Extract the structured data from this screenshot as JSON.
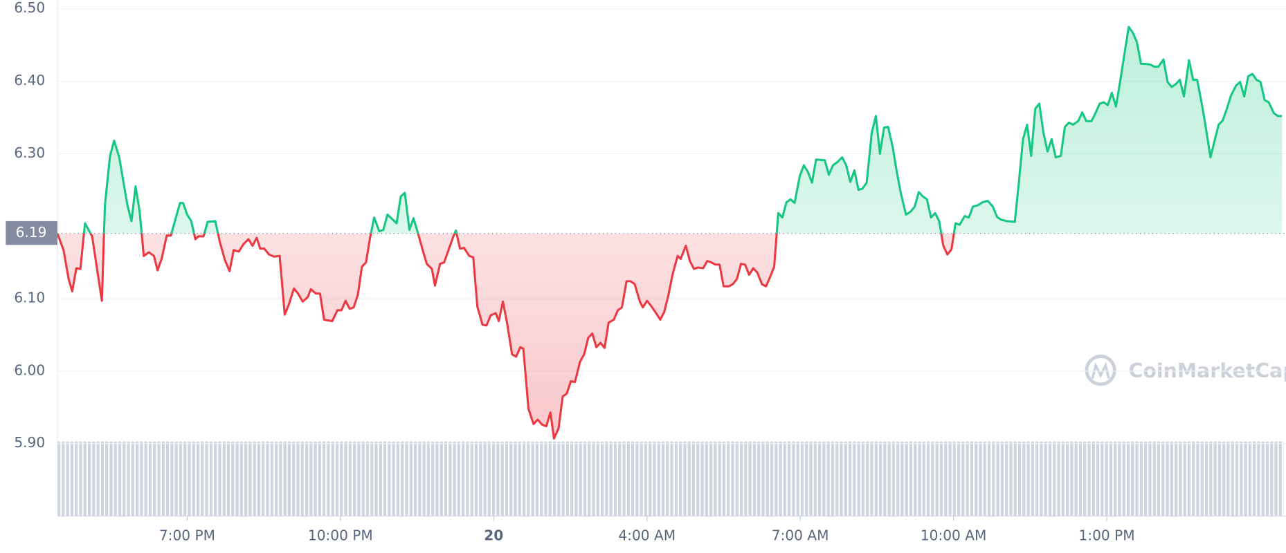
{
  "chart_data": {
    "type": "line",
    "watermark": "CoinMarketCap",
    "baseline": 6.19,
    "up_color": "#16c784",
    "down_color": "#ea3943",
    "xlim": [
      16.46,
      40.46
    ],
    "xticks": [
      {
        "value": 19,
        "label": "7:00 PM"
      },
      {
        "value": 22,
        "label": "10:00 PM"
      },
      {
        "value": 25,
        "label": "20"
      },
      {
        "value": 28,
        "label": "4:00 AM"
      },
      {
        "value": 31,
        "label": "7:00 AM"
      },
      {
        "value": 34,
        "label": "10:00 AM"
      },
      {
        "value": 37,
        "label": "1:00 PM"
      }
    ],
    "ylim": [
      5.8,
      6.512
    ],
    "yticks": [
      {
        "value": 5.9,
        "label": "5.90"
      },
      {
        "value": 6.0,
        "label": "6.00"
      },
      {
        "value": 6.1,
        "label": "6.10"
      },
      {
        "value": 6.3,
        "label": "6.30"
      },
      {
        "value": 6.4,
        "label": "6.40"
      },
      {
        "value": 6.5,
        "label": "6.50"
      }
    ],
    "grid": true,
    "x": [
      16.46,
      16.58,
      16.68,
      16.75,
      16.83,
      16.91,
      17.0,
      17.14,
      17.33,
      17.39,
      17.49,
      17.57,
      17.67,
      17.83,
      17.91,
      17.99,
      18.07,
      18.15,
      18.25,
      18.35,
      18.42,
      18.5,
      18.6,
      18.68,
      18.78,
      18.86,
      18.92,
      19.0,
      19.08,
      19.16,
      19.22,
      19.32,
      19.4,
      19.55,
      19.64,
      19.74,
      19.83,
      19.91,
      20.01,
      20.1,
      20.2,
      20.28,
      20.36,
      20.43,
      20.51,
      20.6,
      20.7,
      20.81,
      20.91,
      20.99,
      21.09,
      21.17,
      21.26,
      21.36,
      21.42,
      21.52,
      21.6,
      21.68,
      21.84,
      21.94,
      22.02,
      22.1,
      22.18,
      22.26,
      22.34,
      22.42,
      22.5,
      22.58,
      22.66,
      22.76,
      22.84,
      22.92,
      23.1,
      23.18,
      23.26,
      23.35,
      23.43,
      23.51,
      23.61,
      23.69,
      23.79,
      23.85,
      23.95,
      24.03,
      24.11,
      24.2,
      24.26,
      24.34,
      24.42,
      24.52,
      24.6,
      24.68,
      24.78,
      24.86,
      24.94,
      25.04,
      25.1,
      25.18,
      25.26,
      25.36,
      25.44,
      25.52,
      25.58,
      25.68,
      25.78,
      25.86,
      25.95,
      26.03,
      26.11,
      26.18,
      26.27,
      26.35,
      26.43,
      26.51,
      26.59,
      26.69,
      26.77,
      26.85,
      26.93,
      27.01,
      27.09,
      27.17,
      27.25,
      27.35,
      27.43,
      27.51,
      27.6,
      27.68,
      27.76,
      27.86,
      27.92,
      28.0,
      28.08,
      28.16,
      28.26,
      28.34,
      28.42,
      28.5,
      28.6,
      28.66,
      28.76,
      28.84,
      28.92,
      29.0,
      29.1,
      29.18,
      29.26,
      29.34,
      29.42,
      29.5,
      29.6,
      29.68,
      29.76,
      29.84,
      29.92,
      30.0,
      30.08,
      30.16,
      30.25,
      30.33,
      30.41,
      30.49,
      30.57,
      30.65,
      30.73,
      30.81,
      30.89,
      30.99,
      31.07,
      31.15,
      31.23,
      31.31,
      31.48,
      31.56,
      31.64,
      31.72,
      31.82,
      31.9,
      31.98,
      32.06,
      32.14,
      32.22,
      32.3,
      32.4,
      32.48,
      32.56,
      32.64,
      32.72,
      32.81,
      32.89,
      32.97,
      33.07,
      33.16,
      33.24,
      33.32,
      33.4,
      33.48,
      33.56,
      33.64,
      33.72,
      33.8,
      33.88,
      33.96,
      34.04,
      34.12,
      34.22,
      34.3,
      34.38,
      34.48,
      34.57,
      34.67,
      34.77,
      34.85,
      34.93,
      35.04,
      35.2,
      35.28,
      35.36,
      35.44,
      35.52,
      35.6,
      35.68,
      35.76,
      35.84,
      35.92,
      36.0,
      36.1,
      36.18,
      36.26,
      36.34,
      36.44,
      36.52,
      36.6,
      36.7,
      36.78,
      36.86,
      36.94,
      37.02,
      37.1,
      37.18,
      37.26,
      37.34,
      37.43,
      37.51,
      37.59,
      37.67,
      37.75,
      37.85,
      37.93,
      38.01,
      38.11,
      38.19,
      38.27,
      38.35,
      38.43,
      38.51,
      38.61,
      38.69,
      38.77,
      38.87,
      38.95,
      39.03,
      39.11,
      39.19,
      39.27,
      39.35,
      39.43,
      39.53,
      39.61,
      39.69,
      39.77,
      39.85,
      39.93,
      40.01,
      40.09,
      40.17,
      40.27,
      40.35,
      40.43
    ],
    "values": [
      6.19,
      6.167,
      6.127,
      6.11,
      6.142,
      6.141,
      6.204,
      6.186,
      6.097,
      6.229,
      6.297,
      6.318,
      6.295,
      6.229,
      6.207,
      6.255,
      6.22,
      6.159,
      6.164,
      6.159,
      6.139,
      6.155,
      6.187,
      6.187,
      6.212,
      6.232,
      6.232,
      6.216,
      6.207,
      6.182,
      6.186,
      6.186,
      6.206,
      6.207,
      6.178,
      6.153,
      6.138,
      6.167,
      6.165,
      6.175,
      6.182,
      6.173,
      6.184,
      6.169,
      6.169,
      6.161,
      6.158,
      6.159,
      6.078,
      6.092,
      6.114,
      6.107,
      6.096,
      6.102,
      6.113,
      6.107,
      6.107,
      6.071,
      6.069,
      6.084,
      6.084,
      6.097,
      6.086,
      6.088,
      6.105,
      6.144,
      6.15,
      6.184,
      6.212,
      6.193,
      6.195,
      6.216,
      6.204,
      6.241,
      6.246,
      6.195,
      6.211,
      6.192,
      6.167,
      6.148,
      6.141,
      6.118,
      6.148,
      6.15,
      6.166,
      6.184,
      6.194,
      6.169,
      6.17,
      6.159,
      6.157,
      6.089,
      6.064,
      6.063,
      6.077,
      6.08,
      6.069,
      6.096,
      6.067,
      6.023,
      6.02,
      6.033,
      6.031,
      5.948,
      5.927,
      5.933,
      5.926,
      5.924,
      5.943,
      5.907,
      5.921,
      5.965,
      5.969,
      5.986,
      5.985,
      6.013,
      6.023,
      6.046,
      6.052,
      6.033,
      6.039,
      6.032,
      6.067,
      6.071,
      6.084,
      6.088,
      6.124,
      6.124,
      6.12,
      6.096,
      6.088,
      6.097,
      6.09,
      6.082,
      6.071,
      6.082,
      6.105,
      6.133,
      6.159,
      6.155,
      6.173,
      6.152,
      6.141,
      6.143,
      6.142,
      6.152,
      6.15,
      6.147,
      6.147,
      6.117,
      6.117,
      6.12,
      6.127,
      6.148,
      6.147,
      6.133,
      6.142,
      6.136,
      6.12,
      6.117,
      6.13,
      6.144,
      6.218,
      6.212,
      6.233,
      6.237,
      6.232,
      6.269,
      6.284,
      6.275,
      6.26,
      6.292,
      6.291,
      6.271,
      6.284,
      6.288,
      6.295,
      6.284,
      6.261,
      6.277,
      6.25,
      6.252,
      6.26,
      6.329,
      6.352,
      6.3,
      6.336,
      6.337,
      6.309,
      6.275,
      6.245,
      6.216,
      6.22,
      6.227,
      6.247,
      6.241,
      6.237,
      6.212,
      6.218,
      6.207,
      6.173,
      6.161,
      6.168,
      6.204,
      6.202,
      6.214,
      6.212,
      6.227,
      6.229,
      6.233,
      6.235,
      6.227,
      6.213,
      6.209,
      6.207,
      6.206,
      6.261,
      6.32,
      6.34,
      6.297,
      6.362,
      6.369,
      6.329,
      6.303,
      6.32,
      6.295,
      6.297,
      6.337,
      6.343,
      6.34,
      6.345,
      6.357,
      6.345,
      6.345,
      6.356,
      6.369,
      6.371,
      6.367,
      6.384,
      6.365,
      6.399,
      6.435,
      6.475,
      6.467,
      6.454,
      6.424,
      6.424,
      6.423,
      6.42,
      6.42,
      6.43,
      6.399,
      6.392,
      6.396,
      6.402,
      6.379,
      6.429,
      6.402,
      6.402,
      6.365,
      6.331,
      6.295,
      6.318,
      6.34,
      6.346,
      6.362,
      6.38,
      6.394,
      6.399,
      6.379,
      6.407,
      6.41,
      6.402,
      6.399,
      6.374,
      6.371,
      6.356,
      6.352,
      6.352
    ]
  }
}
